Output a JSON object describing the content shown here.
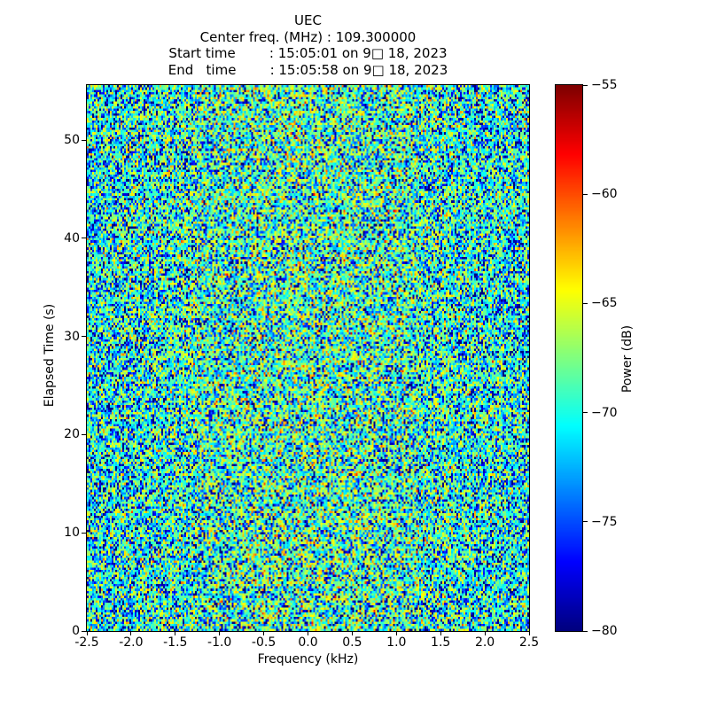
{
  "header": {
    "title": "UEC",
    "center_freq_line": "Center freq. (MHz) : 109.300000",
    "start_time_line": "Start time        : 15:05:01 on 9□ 18, 2023",
    "end_time_line": "End   time        : 15:05:58 on 9□ 18, 2023"
  },
  "chart_data": {
    "type": "heatmap",
    "title": "UEC",
    "subtitle_lines": [
      "Center freq. (MHz) : 109.300000",
      "Start time        : 15:05:01 on 9□ 18, 2023",
      "End   time        : 15:05:58 on 9□ 18, 2023"
    ],
    "xlabel": "Frequency (kHz)",
    "ylabel": "Elapsed Time (s)",
    "colorbar_label": "Power (dB)",
    "xlim": [
      -2.5,
      2.5
    ],
    "ylim": [
      0,
      55.6
    ],
    "clim": [
      -80,
      -55
    ],
    "xticks": [
      -2.5,
      -2.0,
      -1.5,
      -1.0,
      -0.5,
      0.0,
      0.5,
      1.0,
      1.5,
      2.0,
      2.5
    ],
    "xtick_labels": [
      "-2.5",
      "-2.0",
      "-1.5",
      "-1.0",
      "-0.5",
      "0.0",
      "0.5",
      "1.0",
      "1.5",
      "2.0",
      "2.5"
    ],
    "yticks": [
      0,
      10,
      20,
      30,
      40,
      50
    ],
    "ytick_labels": [
      "0",
      "10",
      "20",
      "30",
      "40",
      "50"
    ],
    "cbar_ticks": [
      -55,
      -60,
      -65,
      -70,
      -75,
      -80
    ],
    "cbar_tick_labels": [
      "−55",
      "−60",
      "−65",
      "−70",
      "−75",
      "−80"
    ],
    "colormap": "jet",
    "colormap_anchor_colors_top_to_bottom": [
      "#800000",
      "#ff0000",
      "#ffff00",
      "#00ffff",
      "#0000ff",
      "#000080"
    ],
    "grid": false,
    "legend": "none (colorbar on right)",
    "data_description": "Broadband random noise spectrogram; power values are i.i.d. exponential-power noise with median near -70 dB, slightly brighter (~2.5 dB) toward center frequency; spans full axes ranges.",
    "noise": {
      "grid_cols": 250,
      "grid_rows": 232,
      "mean_power_db_edge": -69.8,
      "center_boost_db": 2.5,
      "gauss_sigma_frac": 0.32,
      "seed": 1318979
    }
  }
}
